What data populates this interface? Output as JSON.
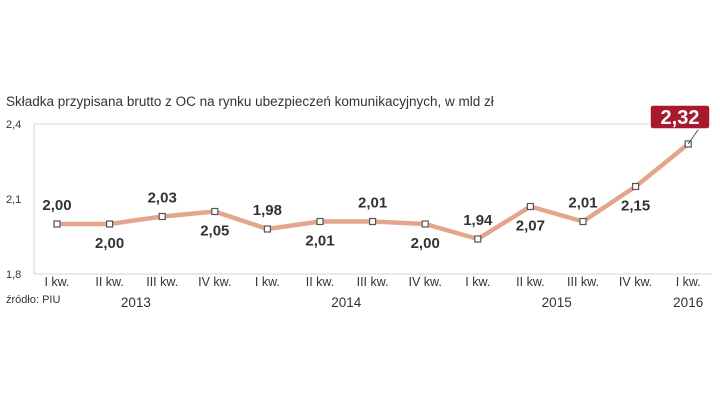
{
  "chart_data": {
    "type": "line",
    "title": "Składka przypisana brutto z OC na rynku ubezpieczeń komunikacyjnych, w mld zł",
    "source": "źródło: PIU",
    "ylim": [
      1.8,
      2.4
    ],
    "yticks": [
      "1,8",
      "2,1",
      "2,4"
    ],
    "categories": [
      "I kw.",
      "II kw.",
      "III kw.",
      "IV kw.",
      "I kw.",
      "II kw.",
      "III kw.",
      "IV kw.",
      "I kw.",
      "II kw.",
      "III kw.",
      "IV kw.",
      "I kw."
    ],
    "years": [
      {
        "label": "2013",
        "from": 0,
        "to": 3
      },
      {
        "label": "2014",
        "from": 4,
        "to": 7
      },
      {
        "label": "2015",
        "from": 8,
        "to": 11
      },
      {
        "label": "2016",
        "from": 12,
        "to": 12
      }
    ],
    "values": [
      2.0,
      2.0,
      2.03,
      2.05,
      1.98,
      2.01,
      2.01,
      2.0,
      1.94,
      2.07,
      2.01,
      2.15,
      2.32
    ],
    "labels": [
      "2,00",
      "2,00",
      "2,03",
      "2,05",
      "1,98",
      "2,01",
      "2,01",
      "2,00",
      "1,94",
      "2,07",
      "2,01",
      "2,15",
      "2,32"
    ],
    "label_side": [
      "above",
      "below",
      "above",
      "below",
      "above",
      "below",
      "above",
      "below",
      "above",
      "below",
      "above",
      "below",
      "callout"
    ],
    "grid": false,
    "colors": {
      "line": "#e3a58c",
      "marker_fill": "#ffffff",
      "marker_stroke": "#555555",
      "highlight": "#a8192e",
      "frame": "#d6d6d6",
      "text": "#333333"
    }
  }
}
